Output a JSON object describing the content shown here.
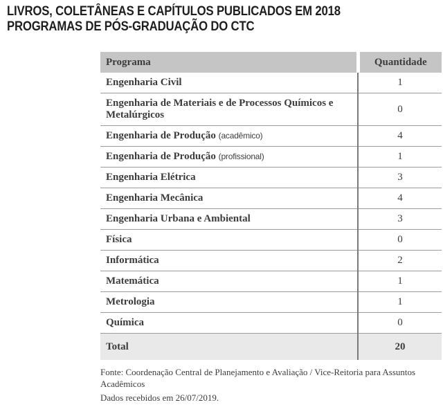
{
  "title": {
    "line1": "LIVROS, COLETÂNEAS E CAPÍTULOS PUBLICADOS EM 2018",
    "line2": "PROGRAMAS DE PÓS-GRADUAÇÃO DO CTC"
  },
  "table": {
    "headers": {
      "program": "Programa",
      "quantity": "Quantidade"
    },
    "rows": [
      {
        "program": "Engenharia Civil",
        "quantity": "1"
      },
      {
        "program": "Engenharia de Materiais e de Processos Químicos e Metalúrgicos",
        "quantity": "0"
      },
      {
        "program": "Engenharia de Produção",
        "suffix": "(acadêmico)",
        "quantity": "4"
      },
      {
        "program": "Engenharia de Produção",
        "suffix": "(profissional)",
        "quantity": "1"
      },
      {
        "program": "Engenharia Elétrica",
        "quantity": "3"
      },
      {
        "program": "Engenharia Mecânica",
        "quantity": "4"
      },
      {
        "program": "Engenharia Urbana e Ambiental",
        "quantity": "3"
      },
      {
        "program": "Física",
        "quantity": "0"
      },
      {
        "program": "Informática",
        "quantity": "2"
      },
      {
        "program": "Matemática",
        "quantity": "1"
      },
      {
        "program": "Metrologia",
        "quantity": "1"
      },
      {
        "program": "Química",
        "quantity": "0"
      }
    ],
    "total": {
      "label": "Total",
      "quantity": "20"
    }
  },
  "footer": {
    "source_line1": "Fonte: Coordenação Central de Planejamento e Avaliação / Vice-Reitoria para Assuntos",
    "source_line2": "Acadêmicos",
    "received": "Dados recebidos em 26/07/2019."
  },
  "colors": {
    "header_background": "#c5c5c5",
    "total_row_background": "#e9e9e9",
    "row_separator": "#9b9b9b",
    "column_divider": "#7a7a7a",
    "text": "#3c3c3c",
    "title_text": "#1e1e1e"
  }
}
